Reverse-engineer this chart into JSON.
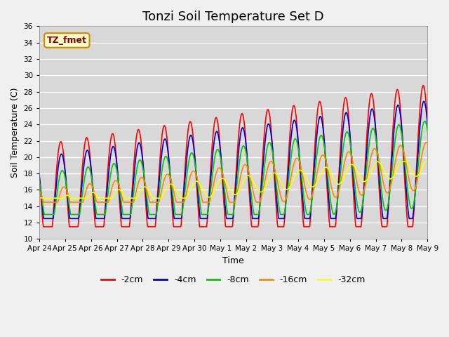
{
  "title": "Tonzi Soil Temperature Set D",
  "xlabel": "Time",
  "ylabel": "Soil Temperature (C)",
  "ylim": [
    10,
    36
  ],
  "yticks": [
    10,
    12,
    14,
    16,
    18,
    20,
    22,
    24,
    26,
    28,
    30,
    32,
    34,
    36
  ],
  "fig_facecolor": "#f0f0f0",
  "plot_bg_color": "#d8d8d8",
  "legend_label": "TZ_fmet",
  "series_colors": {
    "-2cm": "#ff0000",
    "-4cm": "#0000cc",
    "-8cm": "#00cc00",
    "-16cm": "#ff8800",
    "-32cm": "#ffff00"
  },
  "series_order": [
    "-2cm",
    "-4cm",
    "-8cm",
    "-16cm",
    "-32cm"
  ],
  "legend_colors": [
    "#ff0000",
    "#0000cc",
    "#00cc00",
    "#ff8800",
    "#ffff00"
  ],
  "legend_labels": [
    "-2cm",
    "-4cm",
    "-8cm",
    "-16cm",
    "-32cm"
  ],
  "xtick_labels": [
    "Apr 24",
    "Apr 25",
    "Apr 26",
    "Apr 27",
    "Apr 28",
    "Apr 29",
    "Apr 30",
    "May 1",
    "May 2",
    "May 3",
    "May 4",
    "May 5",
    "May 6",
    "May 7",
    "May 8",
    "May 9"
  ],
  "n_days": 16,
  "points_per_day": 48,
  "title_fontsize": 13,
  "axis_label_fontsize": 9,
  "tick_fontsize": 7.5,
  "linewidth": 1.2
}
